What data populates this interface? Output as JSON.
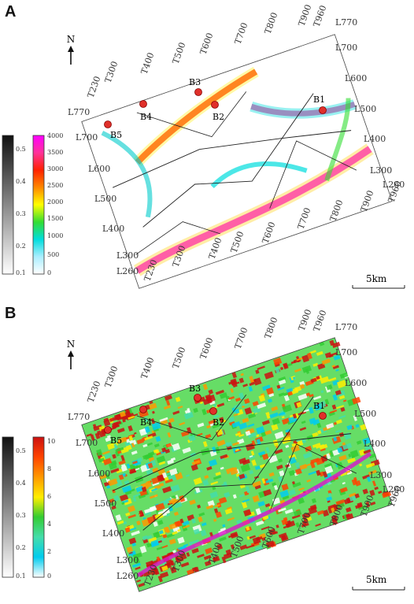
{
  "panels": [
    {
      "label": "A",
      "north": "N",
      "scale_bar": "5km",
      "wells": [
        "B1",
        "B2",
        "B3",
        "B4",
        "B5"
      ],
      "gray_bar_ticks": [
        "0.5",
        "0.4",
        "0.3",
        "0.2",
        "0.1"
      ],
      "color_bar_ticks": [
        "4000",
        "3500",
        "3000",
        "2500",
        "2000",
        "1500",
        "1000",
        "500",
        "0"
      ],
      "color_bar_colors": [
        "#ff00ff",
        "#ff3399",
        "#ff2200",
        "#ff8800",
        "#ffff00",
        "#33dd33",
        "#00dddd",
        "#aaeeff",
        "#ffffff"
      ],
      "trace_labels_top": [
        "T300",
        "T400",
        "T500",
        "T600",
        "T700",
        "T800",
        "T900",
        "T960"
      ],
      "trace_labels_bottom": [
        "T230",
        "T300",
        "T400",
        "T500",
        "T600",
        "T700",
        "T800",
        "T900",
        "T960"
      ],
      "line_labels_left": [
        "L770",
        "L700",
        "L600",
        "L500",
        "L400",
        "L300",
        "L260"
      ],
      "line_labels_right": [
        "L770",
        "L700",
        "L600",
        "L500",
        "L400",
        "L300",
        "L260"
      ],
      "corner_label_tl": "T230"
    },
    {
      "label": "B",
      "north": "N",
      "scale_bar": "5km",
      "wells": [
        "B1",
        "B2",
        "B3",
        "B4",
        "B5"
      ],
      "gray_bar_ticks": [
        "0.5",
        "0.4",
        "0.3",
        "0.2",
        "0.1"
      ],
      "color_bar_ticks": [
        "10",
        "8",
        "6",
        "4",
        "2",
        "0"
      ],
      "color_bar_colors": [
        "#cc1111",
        "#ff4400",
        "#ff9900",
        "#ffee00",
        "#33cc33",
        "#44ddaa",
        "#00ccee",
        "#ffffff"
      ],
      "trace_labels_top": [
        "T300",
        "T400",
        "T500",
        "T600",
        "T700",
        "T800",
        "T900",
        "T960"
      ],
      "trace_labels_bottom": [
        "T230",
        "T300",
        "T400",
        "T500",
        "T600",
        "T700",
        "T800",
        "T900",
        "T960"
      ],
      "line_labels_left": [
        "L770",
        "L700",
        "L600",
        "L500",
        "L400",
        "L300",
        "L260"
      ],
      "line_labels_right": [
        "L770",
        "L700",
        "L600",
        "L500",
        "L400",
        "L300",
        "L260"
      ],
      "corner_label_tl": "T230"
    }
  ]
}
